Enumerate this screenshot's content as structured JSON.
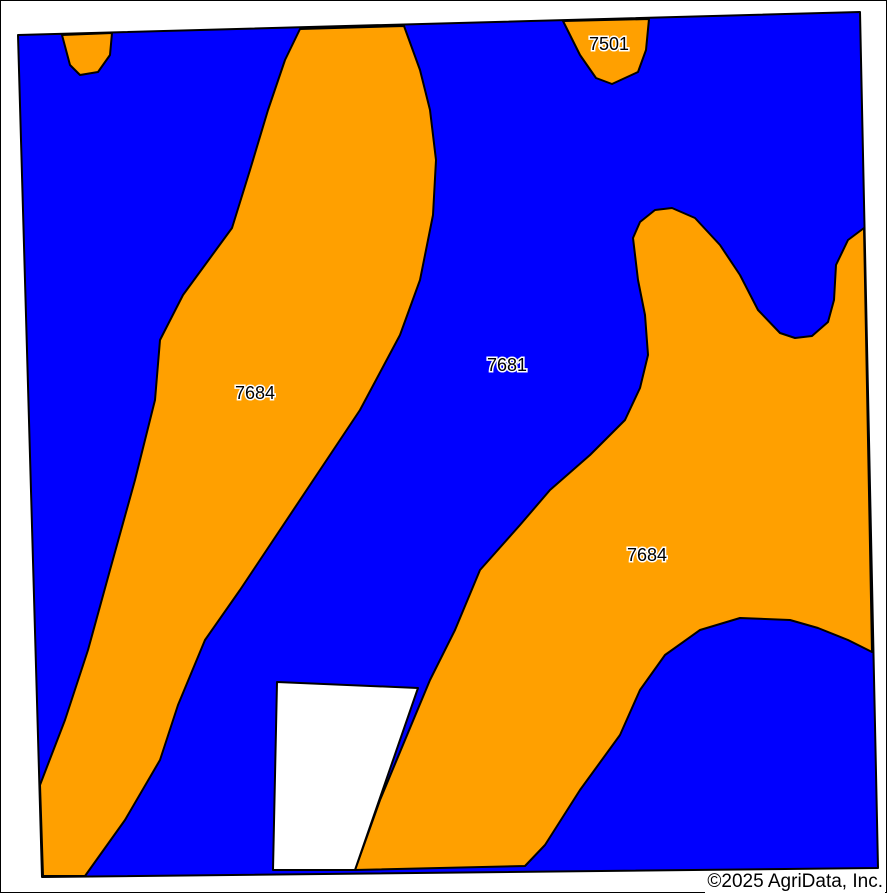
{
  "colors": {
    "unit_7681": "#0000ff",
    "unit_7684": "#ffa000",
    "unit_7501": "#ffa000",
    "excluded_area": "#ffffff",
    "outline": "#000000"
  },
  "soil_units": [
    {
      "symbol": "7501"
    },
    {
      "symbol": "7684"
    },
    {
      "symbol": "7681"
    },
    {
      "symbol": "7684"
    }
  ],
  "copyright": "©2025 AgriData, Inc."
}
